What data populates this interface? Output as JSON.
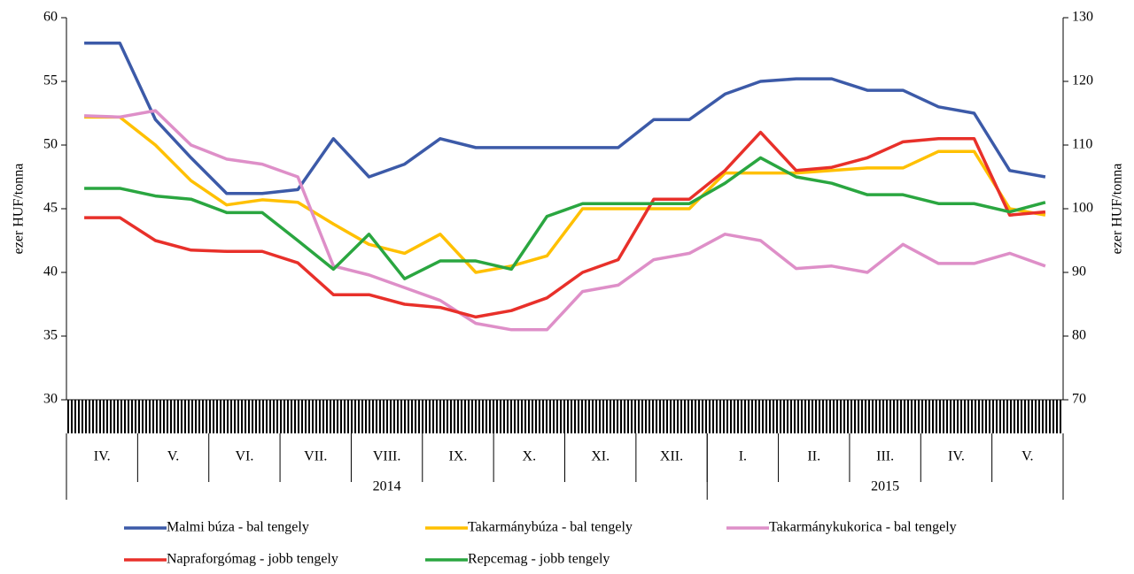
{
  "chart_data": {
    "type": "line",
    "y_label": "ezer HUF/tonna",
    "y2_label": "ezer HUF/tonna",
    "categories": [
      "IV.",
      null,
      "V.",
      null,
      "VI.",
      null,
      "VII.",
      null,
      "VIII.",
      null,
      "IX.",
      null,
      "X.",
      null,
      "XI.",
      null,
      "XII.",
      null,
      "I.",
      null,
      "II.",
      null,
      "III.",
      null,
      "IV.",
      null,
      "V.",
      null
    ],
    "years": [
      "2014",
      "2014",
      "2014",
      "2014",
      "2014",
      "2014",
      "2014",
      "2014",
      "2014",
      "2014",
      "2014",
      "2014",
      "2014",
      "2014",
      "2014",
      "2014",
      "2014",
      "2014",
      "2015",
      "2015",
      "2015",
      "2015",
      "2015",
      "2015",
      "2015",
      "2015",
      "2015",
      "2015"
    ],
    "ylim": [
      30,
      60
    ],
    "yticks": [
      30,
      35,
      40,
      45,
      50,
      55,
      60
    ],
    "y2lim": [
      70,
      130
    ],
    "y2ticks": [
      70,
      80,
      90,
      100,
      110,
      120,
      130
    ],
    "series": [
      {
        "name": "Malmi búza - bal tengely",
        "color": "#3c5aa8",
        "values": [
          58,
          58,
          52,
          49,
          46.2,
          46.2,
          46.5,
          50.5,
          47.5,
          48.5,
          50.5,
          49.8,
          49.8,
          49.8,
          49.8,
          49.8,
          52,
          52,
          54,
          55,
          55.2,
          55.2,
          54.3,
          54.3,
          53,
          52.5,
          48,
          47.5
        ]
      },
      {
        "name": "Takarmánybúza - bal tengely",
        "color": "#ffc000",
        "values": [
          52.2,
          52.2,
          50,
          47.2,
          45.3,
          45.7,
          45.5,
          43.8,
          42.2,
          41.5,
          43,
          40,
          40.5,
          41.3,
          45,
          45,
          45,
          45,
          47.8,
          47.8,
          47.8,
          48,
          48.2,
          48.2,
          49.5,
          49.5,
          45,
          44.5
        ]
      },
      {
        "name": "Takarmánykukorica - bal tengely",
        "color": "#de8fc8",
        "values": [
          52.3,
          52.2,
          52.7,
          50,
          48.9,
          48.5,
          47.5,
          40.5,
          39.8,
          38.8,
          37.8,
          36,
          35.5,
          35.5,
          38.5,
          39,
          41,
          41.5,
          43,
          42.5,
          40.3,
          40.5,
          40,
          42.2,
          40.7,
          40.7,
          41.5,
          40.5
        ]
      },
      {
        "name": "Napraforgómag - jobb tengely",
        "color": "#e8302a",
        "axis": "y2",
        "values": [
          98.6,
          98.6,
          95,
          93.5,
          93.3,
          93.3,
          91.5,
          86.5,
          86.5,
          85,
          84.5,
          83,
          84,
          86,
          90,
          92,
          101.5,
          101.5,
          106,
          112,
          106,
          106.5,
          108,
          110.5,
          111,
          111,
          99,
          99.5
        ]
      },
      {
        "name": "Repcemag - jobb tengely",
        "color": "#2aa640",
        "axis": "y2",
        "values": [
          103.2,
          103.2,
          102,
          101.5,
          99.4,
          99.4,
          95,
          90.5,
          96,
          89,
          91.8,
          91.8,
          90.5,
          98.8,
          100.8,
          100.8,
          100.8,
          100.8,
          104,
          108,
          105,
          104,
          102.2,
          102.2,
          100.8,
          100.8,
          99.5,
          101
        ]
      }
    ]
  }
}
